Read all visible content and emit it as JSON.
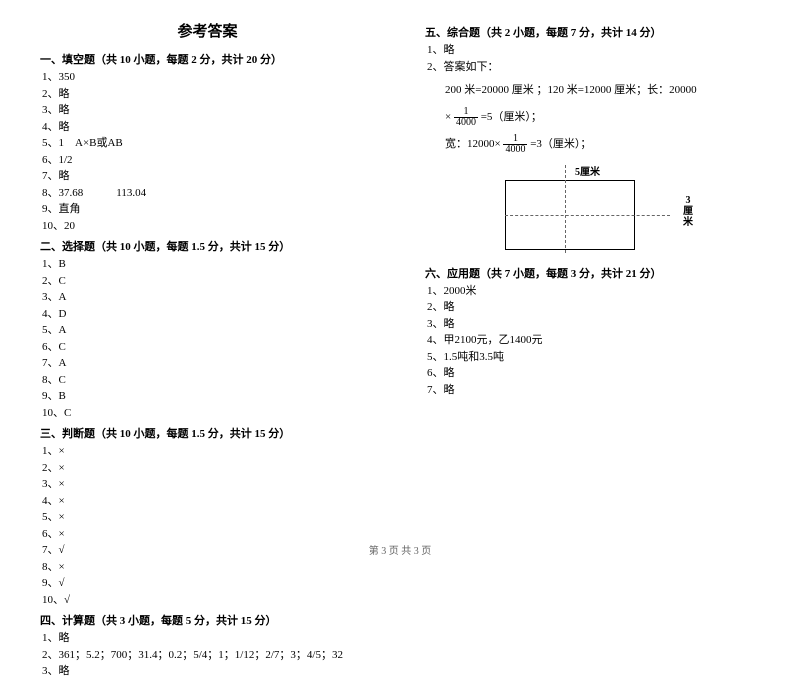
{
  "title": "参考答案",
  "footer": "第 3 页 共 3 页",
  "col1": {
    "s1": {
      "header": "一、填空题（共 10 小题，每题 2 分，共计 20 分）",
      "i1": "1、350",
      "i2": "2、略",
      "i3": "3、略",
      "i4": "4、略",
      "i5": "5、1　A×B或AB",
      "i6": "6、1/2",
      "i7": "7、略",
      "i8": "8、37.68　　　113.04",
      "i9": "9、直角",
      "i10": "10、20"
    },
    "s2": {
      "header": "二、选择题（共 10 小题，每题 1.5 分，共计 15 分）",
      "i1": "1、B",
      "i2": "2、C",
      "i3": "3、A",
      "i4": "4、D",
      "i5": "5、A",
      "i6": "6、C",
      "i7": "7、A",
      "i8": "8、C",
      "i9": "9、B",
      "i10": "10、C"
    },
    "s3": {
      "header": "三、判断题（共 10 小题，每题 1.5 分，共计 15 分）",
      "i1": "1、×",
      "i2": "2、×",
      "i3": "3、×",
      "i4": "4、×",
      "i5": "5、×",
      "i6": "6、×",
      "i7": "7、√",
      "i8": "8、×",
      "i9": "9、√",
      "i10": "10、√"
    },
    "s4": {
      "header": "四、计算题（共 3 小题，每题 5 分，共计 15 分）",
      "i1": "1、略",
      "i2": "2、361；5.2；700；31.4；0.2；5/4；1；1/12；2/7；3；4/5；32",
      "i3": "3、略"
    }
  },
  "col2": {
    "s5": {
      "header": "五、综合题（共 2 小题，每题 7 分，共计 14 分）",
      "i1": "1、略",
      "i2": "2、答案如下：",
      "f1a": "200 米=20000 厘米 ；120 米=12000 厘米；长：20000",
      "f1b": "× ",
      "frac1num": "1",
      "frac1den": "4000",
      "f1c": " =5（厘米）；",
      "f2a": "宽：12000×",
      "frac2num": "1",
      "frac2den": "4000",
      "f2b": " =3（厘米）；",
      "dlabel_top": "5厘米",
      "dlabel_right_1": "3",
      "dlabel_right_2": "厘",
      "dlabel_right_3": "米"
    },
    "s6": {
      "header": "六、应用题（共 7 小题，每题 3 分，共计 21 分）",
      "i1": "1、2000米",
      "i2": "2、略",
      "i3": "3、略",
      "i4": "4、甲2100元，乙1400元",
      "i5": "5、1.5吨和3.5吨",
      "i6": "6、略",
      "i7": "7、略"
    }
  }
}
